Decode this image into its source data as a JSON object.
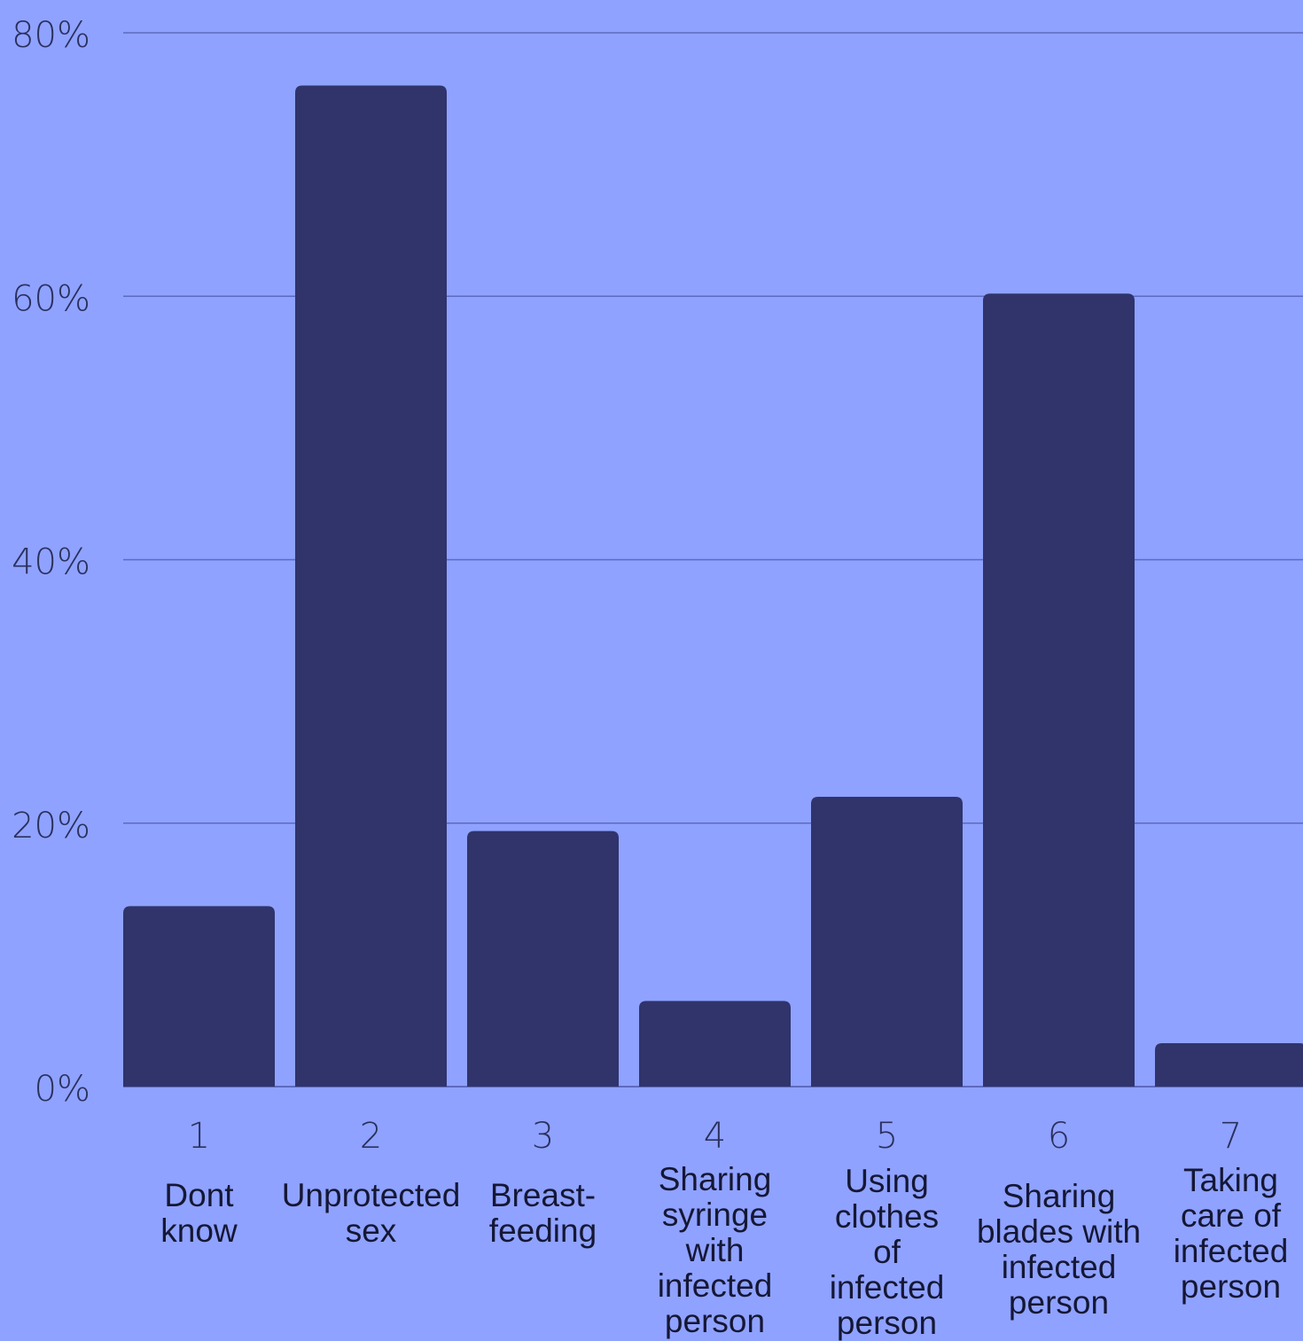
{
  "chart_data": {
    "type": "bar",
    "categories": [
      "1",
      "2",
      "3",
      "4",
      "5",
      "6",
      "7"
    ],
    "category_labels": [
      "Dont know",
      "Unprotected sex",
      "Breast-feeding",
      "Sharing syringe with infected person",
      "Using clothes of infected person",
      "Sharing blades with infected person",
      "Taking care of infected person"
    ],
    "values": [
      13.7,
      76,
      19.4,
      6.5,
      22,
      60.2,
      3.3
    ],
    "ylim": [
      0,
      80
    ],
    "yticks": [
      "0%",
      "20%",
      "40%",
      "60%",
      "80%"
    ],
    "ytick_values": [
      0,
      20,
      40,
      60,
      80
    ],
    "grid": true,
    "colors": {
      "background": "#8fa2ff",
      "bar": "#30346b",
      "grid": "#5d6ac0"
    }
  }
}
